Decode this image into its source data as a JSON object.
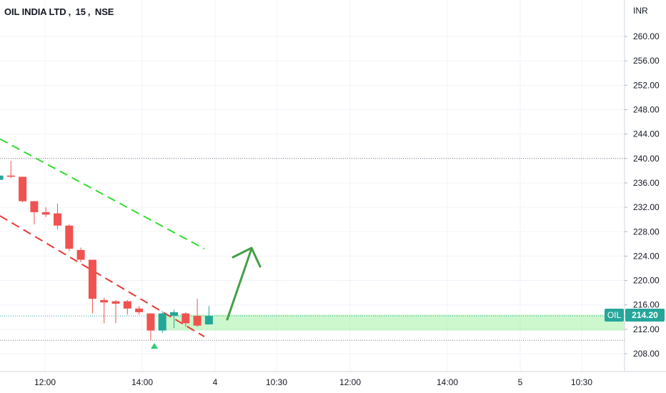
{
  "header": {
    "symbol": "OIL INDIA LTD",
    "interval": "15",
    "exchange": "NSE",
    "sep": ","
  },
  "axis": {
    "currency": "INR"
  },
  "last_price": {
    "symbol_tag": "OIL",
    "value": "214.20"
  },
  "colors": {
    "up": "#26a69a",
    "down": "#ef5350",
    "zone": "#90ee90",
    "trend_upper": "#33dd33",
    "trend_lower": "#e53935",
    "arrow": "#43a047"
  },
  "chart_data": {
    "type": "candlestick",
    "title": "OIL INDIA LTD, 15, NSE",
    "ylabel": "INR",
    "ylim": [
      205.5,
      263
    ],
    "y_ticks": [
      "260.00",
      "256.00",
      "252.00",
      "248.00",
      "244.00",
      "240.00",
      "236.00",
      "232.00",
      "228.00",
      "224.00",
      "220.00",
      "216.00",
      "212.00",
      "208.00"
    ],
    "x_ticks": [
      "12:00",
      "14:00",
      "4",
      "10:30",
      "12:00",
      "14:00",
      "5",
      "10:30"
    ],
    "candles": [
      {
        "o": 236.5,
        "h": 237.5,
        "l": 236.0,
        "c": 237.2
      },
      {
        "o": 237.2,
        "h": 239.6,
        "l": 236.8,
        "c": 237.0
      },
      {
        "o": 237.0,
        "h": 237.0,
        "l": 232.8,
        "c": 233.0
      },
      {
        "o": 233.0,
        "h": 233.0,
        "l": 229.2,
        "c": 231.2
      },
      {
        "o": 231.2,
        "h": 232.0,
        "l": 230.4,
        "c": 230.8
      },
      {
        "o": 231.0,
        "h": 232.6,
        "l": 228.4,
        "c": 229.0
      },
      {
        "o": 229.0,
        "h": 229.2,
        "l": 224.8,
        "c": 225.2
      },
      {
        "o": 225.0,
        "h": 225.4,
        "l": 223.0,
        "c": 223.4
      },
      {
        "o": 223.4,
        "h": 223.4,
        "l": 214.6,
        "c": 217.0
      },
      {
        "o": 216.8,
        "h": 217.2,
        "l": 213.0,
        "c": 216.4
      },
      {
        "o": 216.6,
        "h": 216.8,
        "l": 213.0,
        "c": 216.2
      },
      {
        "o": 216.6,
        "h": 216.8,
        "l": 214.4,
        "c": 215.4
      },
      {
        "o": 215.4,
        "h": 215.8,
        "l": 214.4,
        "c": 214.8
      },
      {
        "o": 214.6,
        "h": 214.6,
        "l": 210.2,
        "c": 211.8
      },
      {
        "o": 211.8,
        "h": 215.0,
        "l": 211.4,
        "c": 214.6
      },
      {
        "o": 214.2,
        "h": 215.2,
        "l": 212.2,
        "c": 214.8
      },
      {
        "o": 214.6,
        "h": 214.8,
        "l": 212.4,
        "c": 213.0
      },
      {
        "o": 214.2,
        "h": 217.0,
        "l": 212.4,
        "c": 212.6
      },
      {
        "o": 212.8,
        "h": 215.8,
        "l": 212.8,
        "c": 214.2
      }
    ],
    "levels": [
      240.0,
      210.2
    ],
    "zone": [
      211.8,
      214.4
    ],
    "last_price": 214.2
  }
}
